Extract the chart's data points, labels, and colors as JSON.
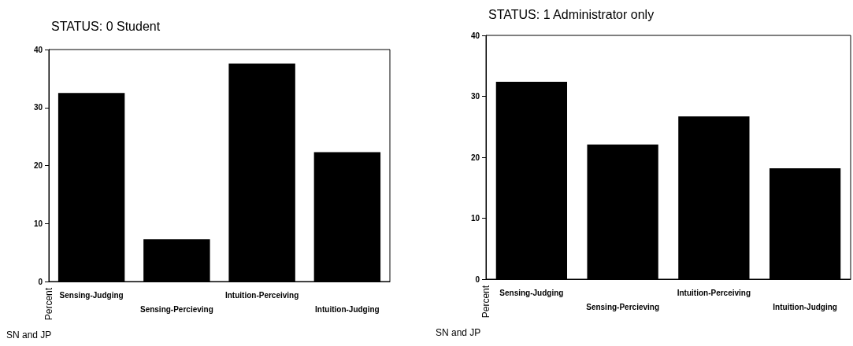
{
  "chart_data": [
    {
      "type": "bar",
      "title": "STATUS: 0 Student",
      "xlabel": "SN and JP",
      "ylabel": "Percent",
      "categories": [
        "Sensing-Judging",
        "Sensing-Percieving",
        "Intuition-Perceiving",
        "Intuition-Judging"
      ],
      "values": [
        32.5,
        7.3,
        37.6,
        22.3
      ],
      "color": "#000000",
      "ylim": [
        0,
        40
      ],
      "yticks": [
        0,
        10,
        20,
        30,
        40
      ]
    },
    {
      "type": "bar",
      "title": "STATUS: 1 Administrator only",
      "xlabel": "SN and JP",
      "ylabel": "Percent",
      "categories": [
        "Sensing-Judging",
        "Sensing-Percieving",
        "Intuition-Perceiving",
        "Intuition-Judging"
      ],
      "values": [
        32.4,
        22.1,
        26.7,
        18.2
      ],
      "color": "#000000",
      "ylim": [
        0,
        40
      ],
      "yticks": [
        0,
        10,
        20,
        30,
        40
      ]
    }
  ]
}
